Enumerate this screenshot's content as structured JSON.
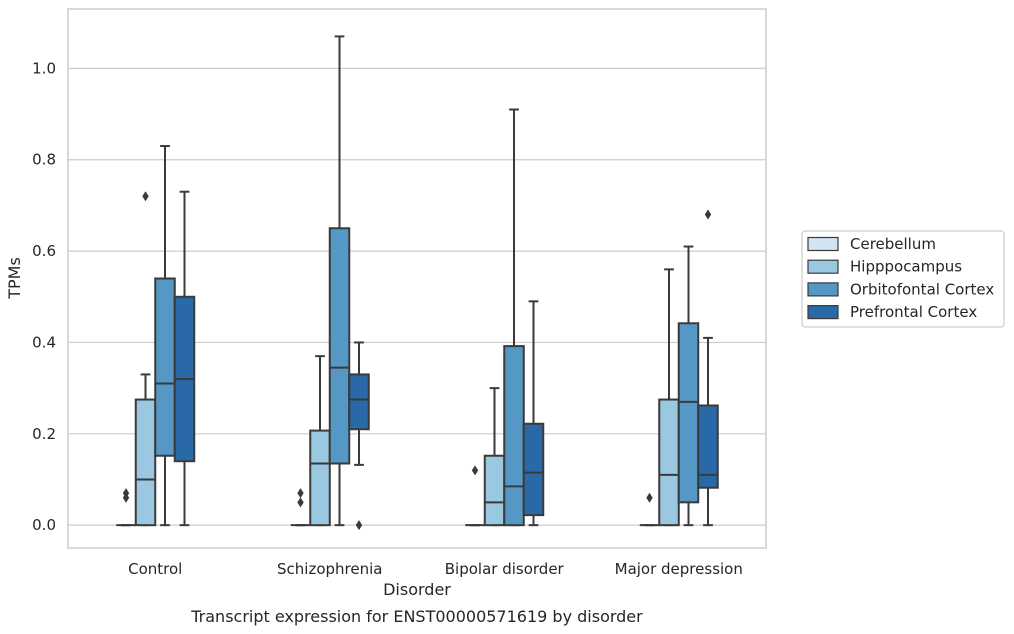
{
  "chart_data": {
    "type": "box",
    "caption": "Transcript expression for ENST00000571619 by disorder",
    "xlabel": "Disorder",
    "ylabel": "TPMs",
    "ylim": [
      -0.05,
      1.13
    ],
    "yticks": [
      "0.0",
      "0.2",
      "0.4",
      "0.6",
      "0.8",
      "1.0"
    ],
    "grid": "horizontal",
    "legend_position": "right",
    "categories": [
      "Control",
      "Schizophrenia",
      "Bipolar disorder",
      "Major depression"
    ],
    "series": [
      {
        "name": "Cerebellum",
        "color": "#d2e3f3",
        "boxes": [
          {
            "whislo": 0,
            "q1": 0,
            "med": 0,
            "q3": 0,
            "whishi": 0,
            "fliers": [
              0.06,
              0.07
            ]
          },
          {
            "whislo": 0,
            "q1": 0,
            "med": 0,
            "q3": 0,
            "whishi": 0,
            "fliers": [
              0.05,
              0.07
            ]
          },
          {
            "whislo": 0,
            "q1": 0,
            "med": 0,
            "q3": 0,
            "whishi": 0,
            "fliers": [
              0.12
            ]
          },
          {
            "whislo": 0,
            "q1": 0,
            "med": 0,
            "q3": 0,
            "whishi": 0,
            "fliers": [
              0.06
            ]
          }
        ]
      },
      {
        "name": "Hipppocampus",
        "color": "#9ac8e0",
        "boxes": [
          {
            "whislo": 0,
            "q1": 0,
            "med": 0.1,
            "q3": 0.275,
            "whishi": 0.33,
            "fliers": [
              0.72
            ]
          },
          {
            "whislo": 0,
            "q1": 0,
            "med": 0.135,
            "q3": 0.207,
            "whishi": 0.37,
            "fliers": []
          },
          {
            "whislo": 0,
            "q1": 0,
            "med": 0.05,
            "q3": 0.152,
            "whishi": 0.3,
            "fliers": []
          },
          {
            "whislo": 0,
            "q1": 0,
            "med": 0.11,
            "q3": 0.275,
            "whishi": 0.56,
            "fliers": []
          }
        ]
      },
      {
        "name": "Orbitofontal Cortex",
        "color": "#5597c5",
        "boxes": [
          {
            "whislo": 0,
            "q1": 0.152,
            "med": 0.31,
            "q3": 0.54,
            "whishi": 0.83,
            "fliers": []
          },
          {
            "whislo": 0,
            "q1": 0.135,
            "med": 0.345,
            "q3": 0.65,
            "whishi": 1.07,
            "fliers": []
          },
          {
            "whislo": 0,
            "q1": 0,
            "med": 0.085,
            "q3": 0.392,
            "whishi": 0.91,
            "fliers": []
          },
          {
            "whislo": 0,
            "q1": 0.05,
            "med": 0.27,
            "q3": 0.442,
            "whishi": 0.61,
            "fliers": []
          }
        ]
      },
      {
        "name": "Prefrontal Cortex",
        "color": "#2a69a8",
        "boxes": [
          {
            "whislo": 0,
            "q1": 0.14,
            "med": 0.32,
            "q3": 0.5,
            "whishi": 0.73,
            "fliers": []
          },
          {
            "whislo": 0.132,
            "q1": 0.21,
            "med": 0.275,
            "q3": 0.33,
            "whishi": 0.4,
            "fliers": [
              0
            ]
          },
          {
            "whislo": 0,
            "q1": 0.022,
            "med": 0.115,
            "q3": 0.222,
            "whishi": 0.49,
            "fliers": []
          },
          {
            "whislo": 0,
            "q1": 0.082,
            "med": 0.11,
            "q3": 0.262,
            "whishi": 0.41,
            "fliers": [
              0.68
            ]
          }
        ]
      }
    ]
  }
}
